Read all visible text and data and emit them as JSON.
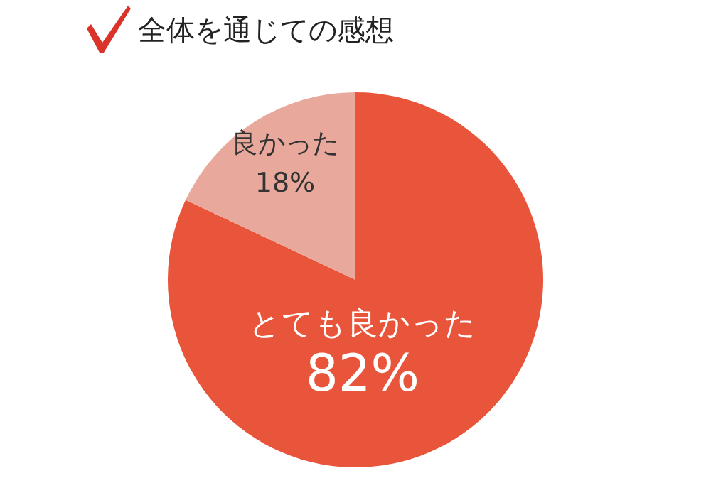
{
  "chart_data": {
    "type": "pie",
    "title": "全体を通じての感想",
    "categories": [
      "とても良かった",
      "良かった"
    ],
    "values": [
      82,
      18
    ],
    "colors": [
      "#e8553a",
      "#e8a99c"
    ],
    "value_labels": [
      "82%",
      "18%"
    ]
  }
}
